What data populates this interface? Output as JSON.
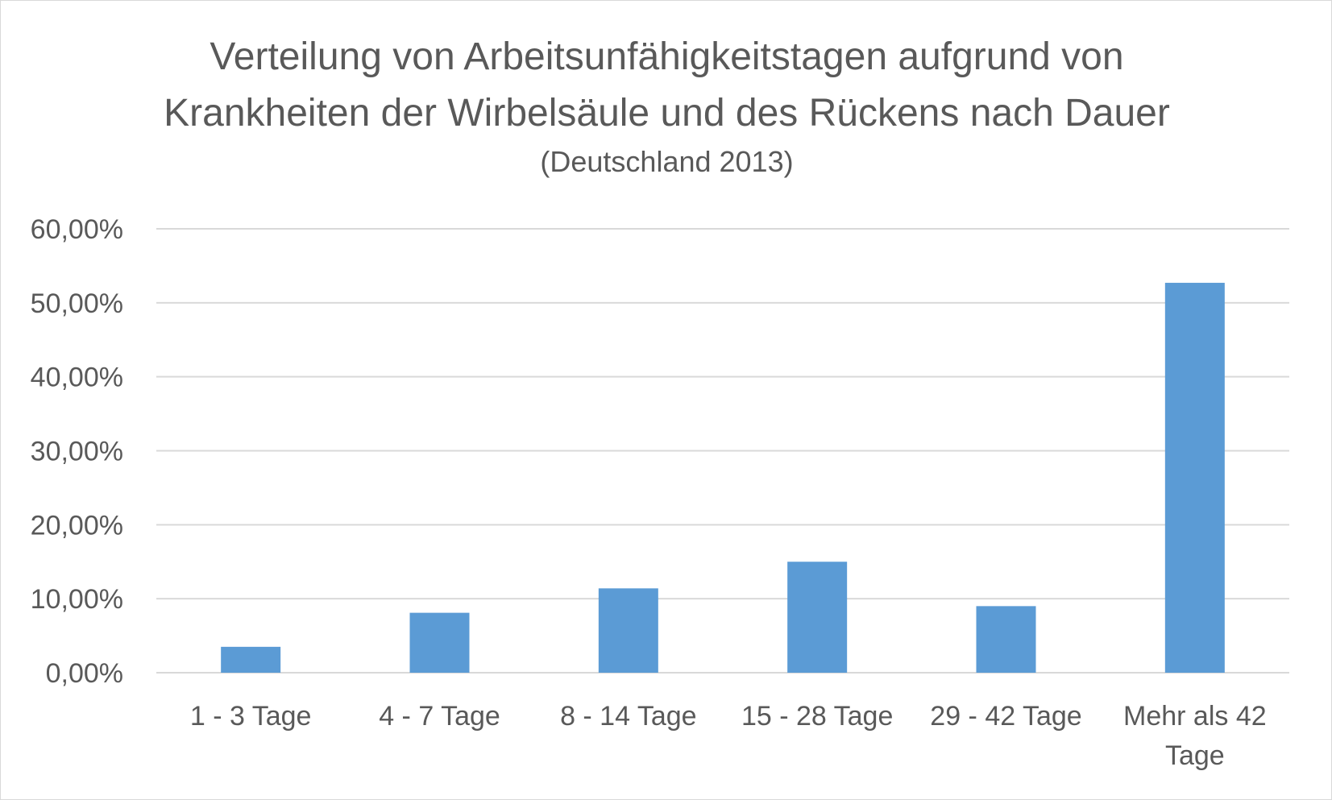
{
  "chart_data": {
    "type": "bar",
    "title_lines": [
      "Verteilung von Arbeitsunfähigkeitstagen aufgrund von",
      "Krankheiten der Wirbelsäule und des Rückens nach Dauer"
    ],
    "subtitle": "(Deutschland 2013)",
    "categories": [
      [
        "1 - 3 Tage"
      ],
      [
        "4 - 7 Tage"
      ],
      [
        "8 - 14 Tage"
      ],
      [
        "15 - 28 Tage"
      ],
      [
        "29 - 42 Tage"
      ],
      [
        "Mehr als 42",
        "Tage"
      ]
    ],
    "values": [
      3.5,
      8.1,
      11.4,
      15.0,
      9.0,
      52.7
    ],
    "y_ticks": [
      "0,00%",
      "10,00%",
      "20,00%",
      "30,00%",
      "40,00%",
      "50,00%",
      "60,00%"
    ],
    "ylim": [
      0,
      60
    ],
    "grid": true,
    "bar_color": "#5b9bd5",
    "grid_color": "#d9d9d9",
    "text_color": "#595959"
  }
}
